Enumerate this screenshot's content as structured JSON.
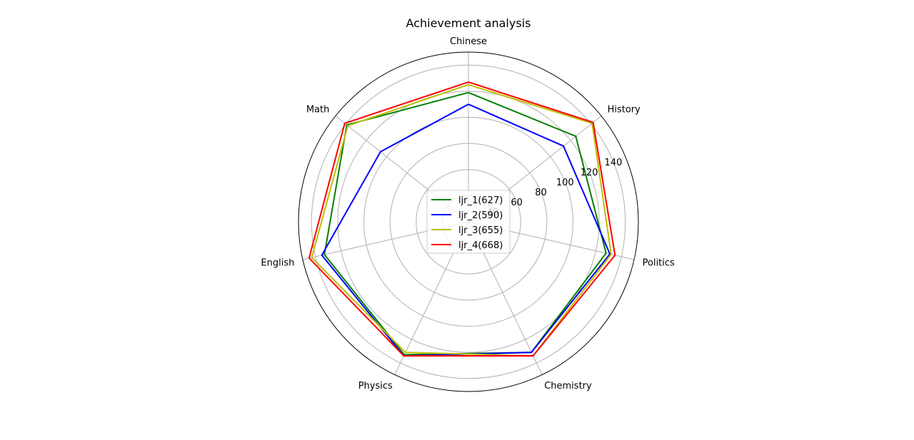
{
  "chart_data": {
    "type": "radar",
    "title": "Achievement analysis",
    "categories": [
      "Chinese",
      "History",
      "Politics",
      "Chemistry",
      "Physics",
      "English",
      "Math"
    ],
    "rlim": [
      20,
      150
    ],
    "rticks": [
      40,
      60,
      80,
      100,
      120,
      140
    ],
    "rtick_labels": [
      "40",
      "60",
      "80",
      "100",
      "120",
      "140"
    ],
    "grid": true,
    "legend_position": "center",
    "series": [
      {
        "name": "ljr_1(627)",
        "color": "#008000",
        "values": [
          119,
          125,
          128,
          131,
          133,
          133,
          139
        ]
      },
      {
        "name": "ljr_2(590)",
        "color": "#0000ff",
        "values": [
          110,
          113,
          131,
          131,
          134,
          135,
          106
        ]
      },
      {
        "name": "ljr_3(655)",
        "color": "#bfbf00",
        "values": [
          125,
          141,
          132,
          134,
          131,
          143,
          138
        ]
      },
      {
        "name": "ljr_4(668)",
        "color": "#ff0000",
        "values": [
          127,
          142,
          135,
          134,
          134,
          145,
          141
        ]
      }
    ]
  }
}
